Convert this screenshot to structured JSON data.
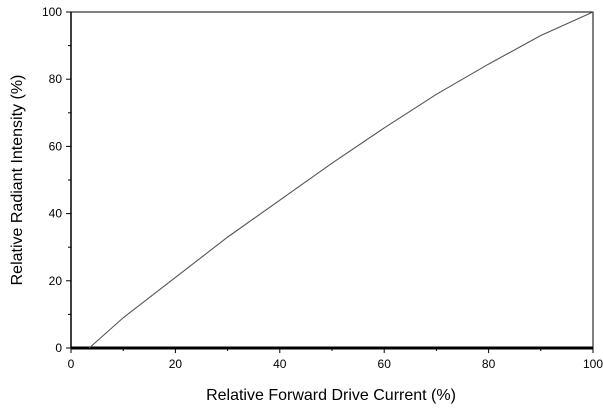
{
  "chart_data": {
    "type": "line",
    "title": "",
    "xlabel": "Relative Forward Drive Current (%)",
    "ylabel": "Relative Radiant Intensity (%)",
    "xlim": [
      0,
      100
    ],
    "ylim": [
      0,
      100
    ],
    "x_ticks": [
      0,
      20,
      40,
      60,
      80,
      100
    ],
    "y_ticks": [
      0,
      20,
      40,
      60,
      80,
      100
    ],
    "x_tick_labels": [
      "0",
      "20",
      "40",
      "60",
      "80",
      "100"
    ],
    "y_tick_labels": [
      "0",
      "20",
      "40",
      "60",
      "80",
      "100"
    ],
    "grid": false,
    "legend": "none",
    "series": [
      {
        "x": [
          3.5,
          10,
          20,
          30,
          40,
          50,
          60,
          70,
          80,
          90,
          100
        ],
        "y": [
          0,
          9,
          21,
          33,
          44,
          55,
          65.5,
          75.5,
          84.5,
          93,
          100
        ]
      }
    ],
    "colors": {
      "line": "#555555",
      "axis": "#000000"
    }
  }
}
